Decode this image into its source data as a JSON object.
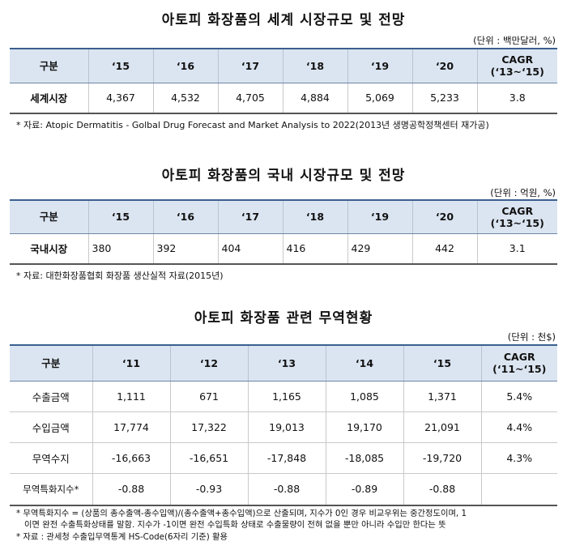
{
  "table1": {
    "title": "아토피 화장품의 세계 시장규모 및 전망",
    "unit": "(단위 : 백만달러, %)",
    "header": [
      "구분",
      "‘15",
      "‘16",
      "‘17",
      "‘18",
      "‘19",
      "‘20",
      "CAGR",
      "(‘13~‘15)"
    ],
    "row": {
      "label": "세계시장",
      "values": [
        "4,367",
        "4,532",
        "4,705",
        "4,884",
        "5,069",
        "5,233",
        "3.8"
      ]
    },
    "note": "* 자료: Atopic Dermatitis - Golbal Drug Forecast and Market Analysis to 2022(2013년 생명공학정책센터 재가공)"
  },
  "table2": {
    "title": "아토피 화장품의 국내 시장규모 및 전망",
    "unit": "(단위 : 억원, %)",
    "header": [
      "구분",
      "‘15",
      "‘16",
      "‘17",
      "‘18",
      "‘19",
      "‘20",
      "CAGR",
      "(‘13~‘15)"
    ],
    "row": {
      "label": "국내시장",
      "values": [
        "380",
        "392",
        "404",
        "416",
        "429",
        "442",
        "3.1"
      ]
    },
    "note": "* 자료: 대한화장품협회 화장품 생산실적 자료(2015년)"
  },
  "table3": {
    "title": "아토피 화장품 관련 무역현황",
    "unit": "(단위 : 천$)",
    "header": [
      "구분",
      "‘11",
      "‘12",
      "‘13",
      "‘14",
      "‘15",
      "CAGR",
      "(‘11~‘15)"
    ],
    "rows": [
      {
        "label": "수출금액",
        "values": [
          "1,111",
          "671",
          "1,165",
          "1,085",
          "1,371",
          "5.4%"
        ]
      },
      {
        "label": "수입금액",
        "values": [
          "17,774",
          "17,322",
          "19,013",
          "19,170",
          "21,091",
          "4.4%"
        ]
      },
      {
        "label": "무역수지",
        "values": [
          "-16,663",
          "-16,651",
          "-17,848",
          "-18,085",
          "-19,720",
          "4.3%"
        ]
      },
      {
        "label": "무역특화지수*",
        "values": [
          "-0.88",
          "-0.93",
          "-0.88",
          "-0.89",
          "-0.88",
          ""
        ]
      }
    ],
    "notes": [
      "* 무역특화지수 = (상품의 총수출액-총수입액)/(총수출액+총수입액)으로 산출되며, 지수가 0인 경우 비교우위는 중간정도이며, 1",
      "이면 완전 수출특화상태를 말함. 지수가 -1이면 완전 수입특화 상태로 수출물량이 전혀 없을 뿐만 아니라 수입만 한다는 뜻",
      "* 자료 : 관세청 수출입무역통계 HS-Code(6자리 기준) 활용"
    ]
  }
}
